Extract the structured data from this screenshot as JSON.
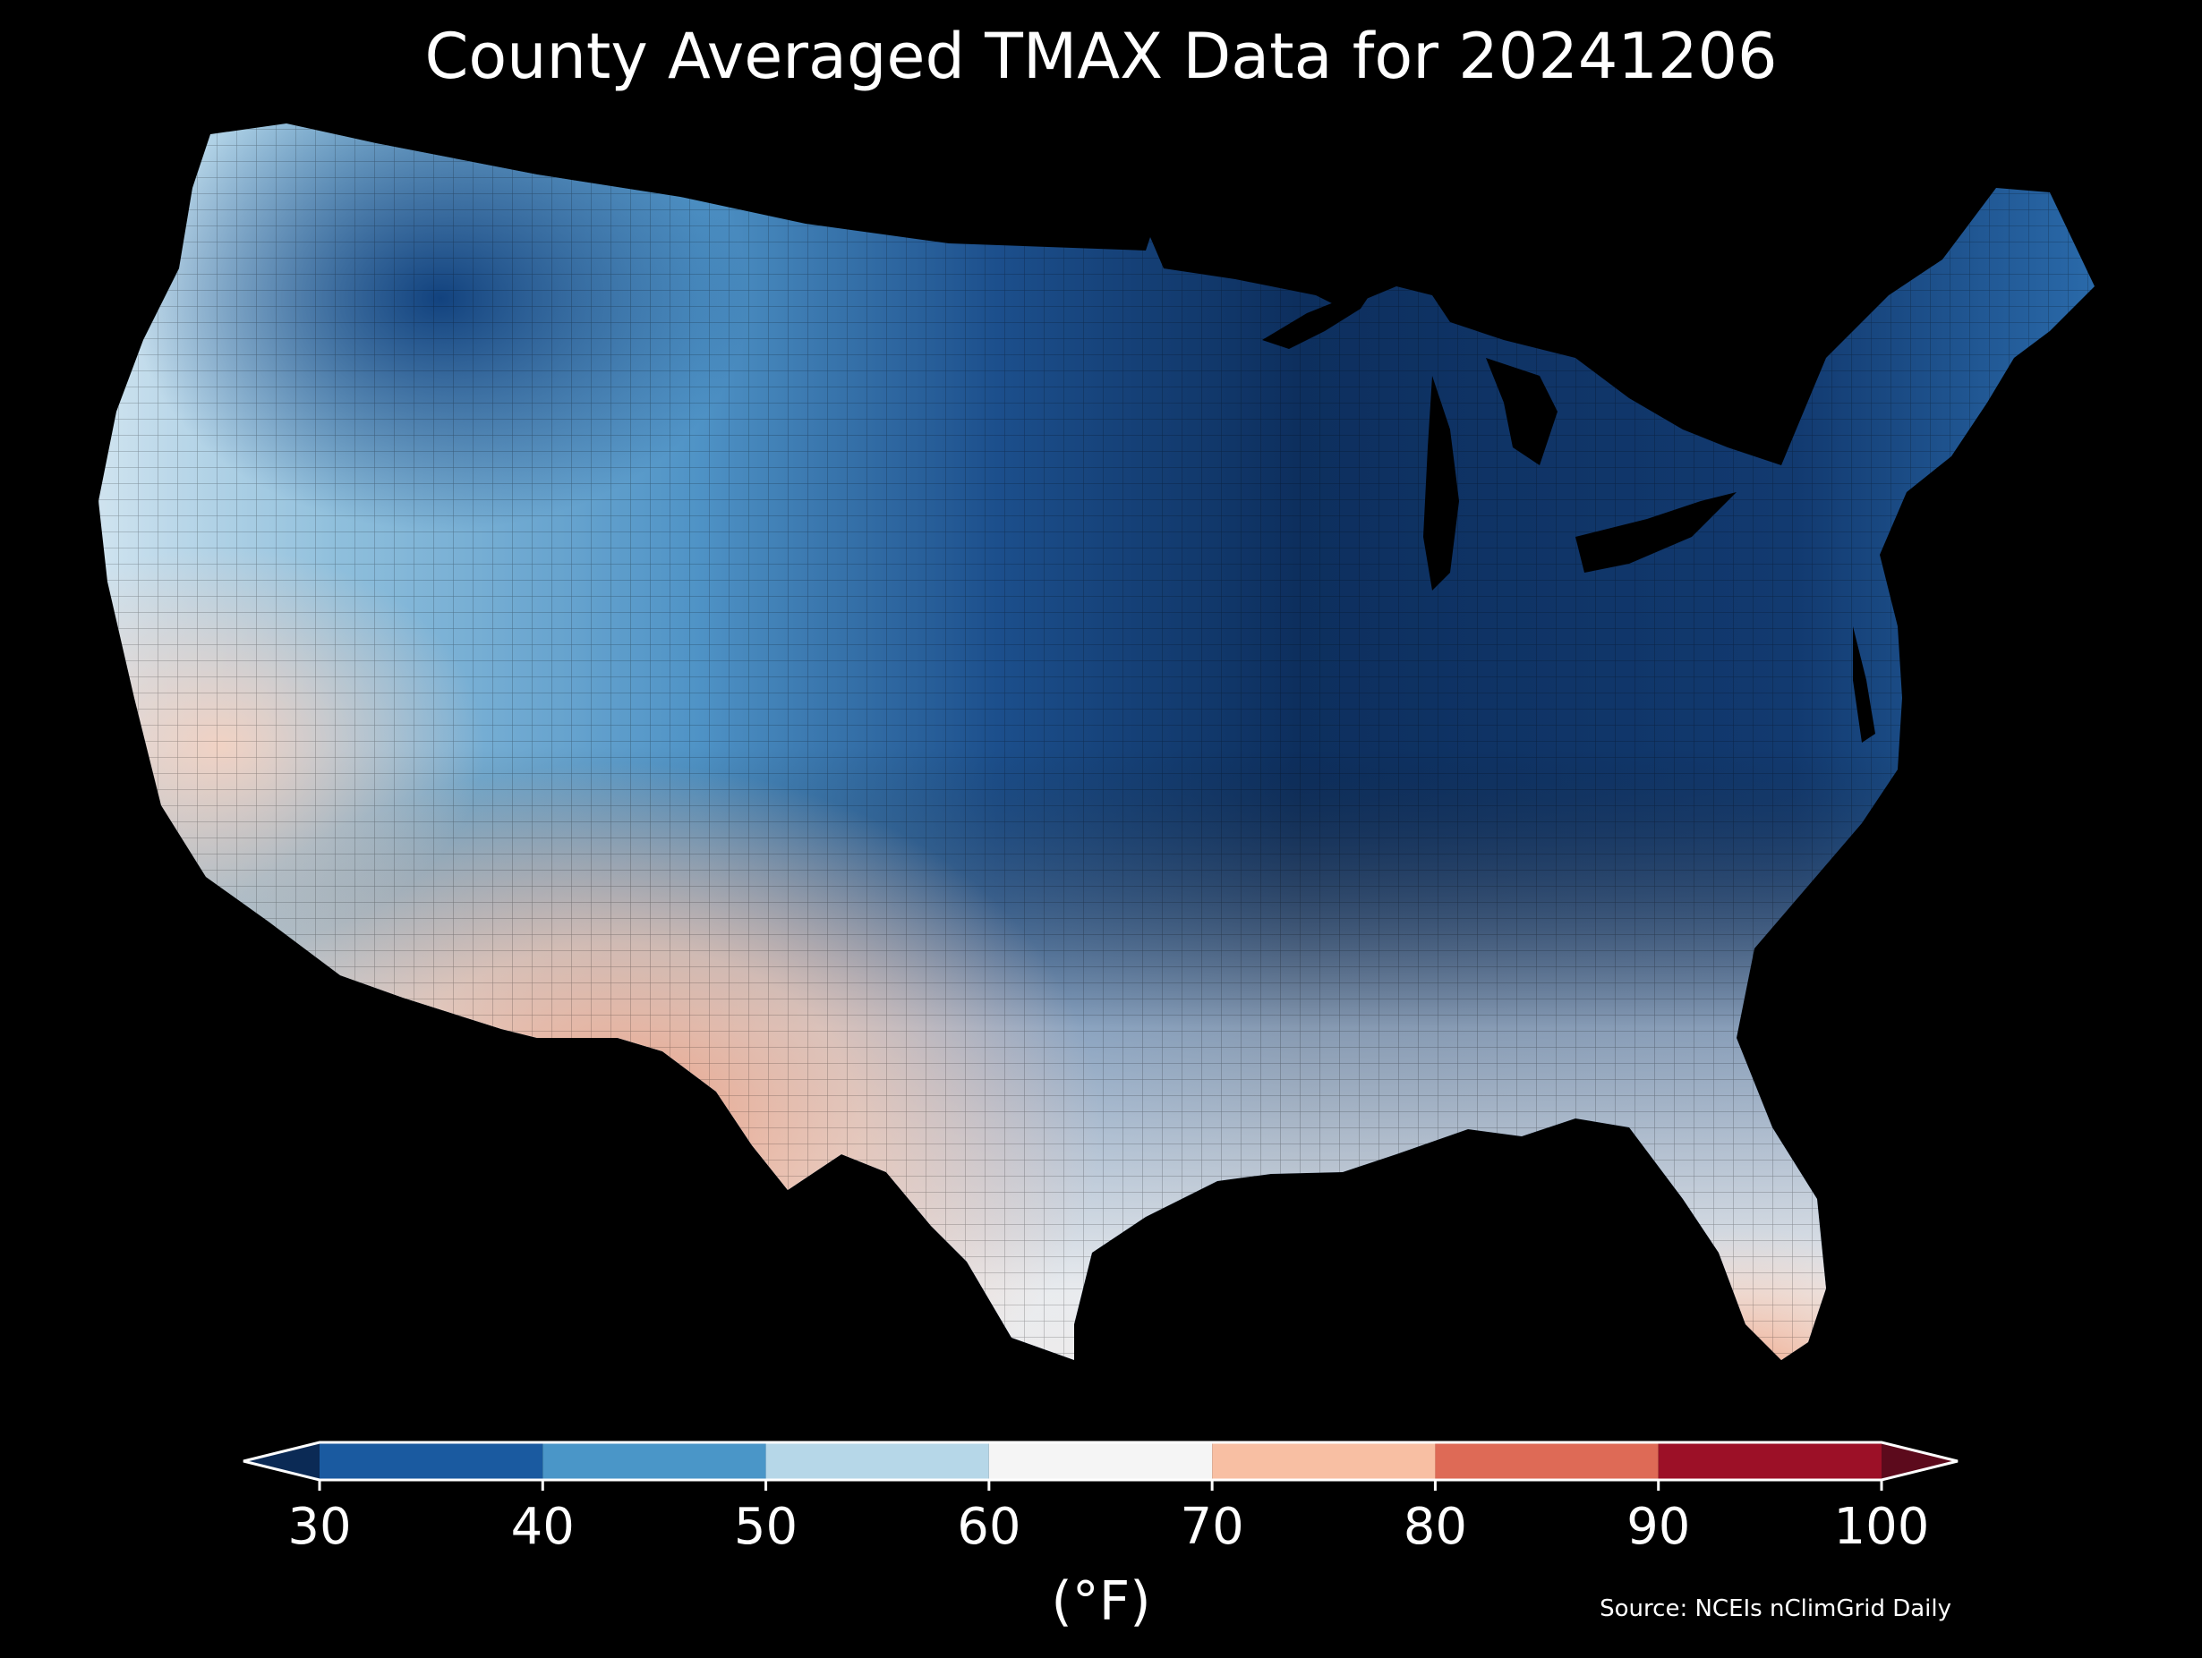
{
  "title": "County Averaged TMAX Data for 20241206",
  "colorbar": {
    "ticks": [
      "30",
      "40",
      "50",
      "60",
      "70",
      "80",
      "90",
      "100"
    ],
    "tick_values": [
      30,
      40,
      50,
      60,
      70,
      80,
      90,
      100
    ],
    "unit_label": "(°F)",
    "extend": "both",
    "bins": [
      {
        "from": 30,
        "to": 40,
        "color": "#1a5aa0"
      },
      {
        "from": 40,
        "to": 50,
        "color": "#4a96c8"
      },
      {
        "from": 50,
        "to": 60,
        "color": "#b6d7e8"
      },
      {
        "from": 60,
        "to": 70,
        "color": "#f5f5f5"
      },
      {
        "from": 70,
        "to": 80,
        "color": "#f8bfa3"
      },
      {
        "from": 80,
        "to": 90,
        "color": "#de6a56"
      },
      {
        "from": 90,
        "to": 100,
        "color": "#9c1027"
      }
    ],
    "under_color": "#0b2a55",
    "over_color": "#5c0a1c"
  },
  "source": "Source: NCEIs nClimGrid Daily",
  "map": {
    "region": "Contiguous United States",
    "variable": "TMAX",
    "units": "°F",
    "colors": {
      "very_cold": "#0d2f5e",
      "cold": "#1f5f9e",
      "cool": "#4f93c6",
      "mild": "#a9cde4",
      "neutral": "#f1f1f1",
      "warm": "#f6c5ae",
      "hot": "#ec9a7c"
    }
  }
}
